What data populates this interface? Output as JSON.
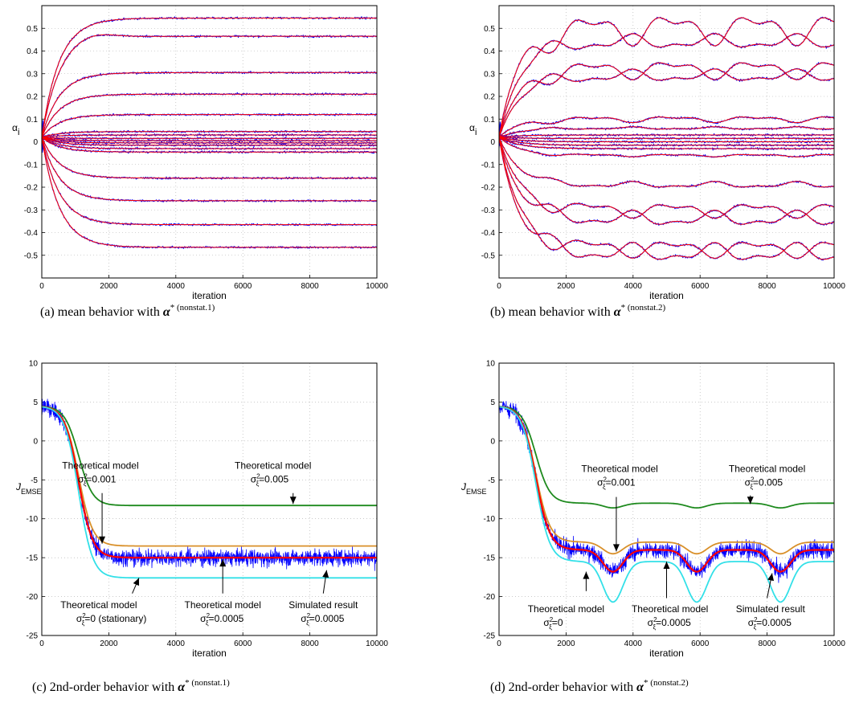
{
  "colors": {
    "simulated": "#0000ff",
    "theory_mean": "#ff0000",
    "sigma_0": "#33e0e8",
    "sigma_0005": "#ff0000",
    "sigma_001": "#d9902a",
    "sigma_005": "#1e8a1e"
  },
  "chart_data": [
    {
      "id": "a",
      "type": "line",
      "ylabel": "α",
      "ylabel_sub": "i",
      "xlabel": "iteration",
      "xlim": [
        0,
        10000
      ],
      "ylim": [
        -0.6,
        0.6
      ],
      "xticks": [
        "0",
        "2000",
        "4000",
        "6000",
        "8000",
        "10000"
      ],
      "yticks": [
        "0.5",
        "0.4",
        "0.3",
        "0.2",
        "0.1",
        "0",
        "-0.1",
        "-0.2",
        "-0.3",
        "-0.4",
        "-0.5"
      ],
      "grid": true,
      "caption": {
        "label": "(a)  mean behavior with ",
        "sym": "α",
        "sup": "* (nonstat.1)"
      },
      "finals": [
        0.545,
        0.465,
        0.305,
        0.21,
        0.12,
        0.045,
        0.03,
        0.015,
        0.005,
        -0.005,
        -0.015,
        -0.03,
        -0.045,
        -0.16,
        -0.26,
        -0.365,
        -0.465
      ],
      "overshoot": {
        "index": 1,
        "peak": 0.49,
        "at": 1400
      }
    },
    {
      "id": "b",
      "type": "line",
      "ylabel": "α",
      "ylabel_sub": "i",
      "xlabel": "iteration",
      "xlim": [
        0,
        10000
      ],
      "ylim": [
        -0.6,
        0.6
      ],
      "xticks": [
        "0",
        "2000",
        "4000",
        "6000",
        "8000",
        "10000"
      ],
      "yticks": [
        "0.5",
        "0.4",
        "0.3",
        "0.2",
        "0.1",
        "0",
        "-0.1",
        "-0.2",
        "-0.3",
        "-0.4",
        "-0.5"
      ],
      "grid": true,
      "caption": {
        "label": "(b)  mean behavior with ",
        "sym": "α",
        "sup": "* (nonstat.2)"
      },
      "series": [
        {
          "base": 0.5,
          "amp": 0.05
        },
        {
          "base": 0.44,
          "amp": 0.03
        },
        {
          "base": 0.32,
          "amp": 0.03
        },
        {
          "base": 0.29,
          "amp": 0.025
        },
        {
          "base": 0.1,
          "amp": 0.01
        },
        {
          "base": 0.06,
          "amp": 0.005
        },
        {
          "base": 0.03,
          "amp": 0.0
        },
        {
          "base": 0.015,
          "amp": 0.0
        },
        {
          "base": 0.0,
          "amp": 0.0
        },
        {
          "base": -0.015,
          "amp": 0.0
        },
        {
          "base": -0.03,
          "amp": 0.0
        },
        {
          "base": -0.06,
          "amp": 0.005
        },
        {
          "base": -0.19,
          "amp": 0.01
        },
        {
          "base": -0.3,
          "amp": 0.03
        },
        {
          "base": -0.34,
          "amp": 0.025
        },
        {
          "base": -0.47,
          "amp": 0.035
        },
        {
          "base": -0.49,
          "amp": 0.03
        }
      ]
    },
    {
      "id": "c",
      "type": "line",
      "ylabel": "J",
      "ylabel_sub": "EMSE",
      "xlabel": "iteration",
      "xlim": [
        0,
        10000
      ],
      "ylim": [
        -25,
        10
      ],
      "xticks": [
        "0",
        "2000",
        "4000",
        "6000",
        "8000",
        "10000"
      ],
      "yticks": [
        "10",
        "5",
        "0",
        "-5",
        "-10",
        "-15",
        "-20",
        "-25"
      ],
      "grid": true,
      "caption": {
        "label": "(c)  2nd-order behavior with ",
        "sym": "α",
        "sup": "* (nonstat.1)"
      },
      "curves": [
        {
          "key": "sigma_005",
          "final": -8.3
        },
        {
          "key": "sigma_001",
          "final": -13.5
        },
        {
          "key": "sigma_0005",
          "final": -15.0
        },
        {
          "key": "sigma_0",
          "final": -17.6
        }
      ],
      "simulated_final": -15.0,
      "annotations": [
        {
          "line1": "Theoretical model",
          "sym": "σ",
          "rest": "=0.001",
          "tx": 1750,
          "ty": -3.6
        },
        {
          "line1": "Theoretical model",
          "sym": "σ",
          "rest": "=0.005",
          "tx": 6900,
          "ty": -3.6
        },
        {
          "line1": "Theoretical model",
          "sym": "σ",
          "rest": "=0 (stationary)",
          "tx": 1700,
          "ty": -21.5
        },
        {
          "line1": "Theoretical model",
          "sym": "σ",
          "rest": "=0.0005",
          "tx": 5400,
          "ty": -21.5
        },
        {
          "line1": "Simulated result",
          "sym": "σ",
          "rest": "=0.0005",
          "tx": 8400,
          "ty": -21.5
        }
      ]
    },
    {
      "id": "d",
      "type": "line",
      "ylabel": "J",
      "ylabel_sub": "EMSE",
      "xlabel": "iteration",
      "xlim": [
        0,
        10000
      ],
      "ylim": [
        -25,
        10
      ],
      "xticks": [
        "0",
        "2000",
        "4000",
        "6000",
        "8000",
        "10000"
      ],
      "yticks": [
        "10",
        "5",
        "0",
        "-5",
        "-10",
        "-15",
        "-20",
        "-25"
      ],
      "grid": true,
      "caption": {
        "label": "(d)  2nd-order behavior with ",
        "sym": "α",
        "sup": "* (nonstat.2)"
      },
      "curves": [
        {
          "key": "sigma_005",
          "final": -8.0,
          "dip": 0.6
        },
        {
          "key": "sigma_001",
          "final": -13.0,
          "dip": 1.5
        },
        {
          "key": "sigma_0005",
          "final": -14.0,
          "dip": 2.8
        },
        {
          "key": "sigma_0",
          "final": -15.5,
          "dip": 5.2
        }
      ],
      "dips": [
        3400,
        5900,
        8400
      ],
      "simulated_final": -14.0,
      "annotations": [
        {
          "line1": "Theoretical model",
          "sym": "σ",
          "rest": "=0.001",
          "tx": 3600,
          "ty": -4.0
        },
        {
          "line1": "Theoretical model",
          "sym": "σ",
          "rest": "=0.005",
          "tx": 8000,
          "ty": -4.0
        },
        {
          "line1": "Theoretical model",
          "sym": "σ",
          "rest": "=0",
          "tx": 2000,
          "ty": -22.0
        },
        {
          "line1": "Theoretical model",
          "sym": "σ",
          "rest": "=0.0005",
          "tx": 5100,
          "ty": -22.0
        },
        {
          "line1": "Simulated result",
          "sym": "σ",
          "rest": "=0.0005",
          "tx": 8100,
          "ty": -22.0
        }
      ]
    }
  ]
}
